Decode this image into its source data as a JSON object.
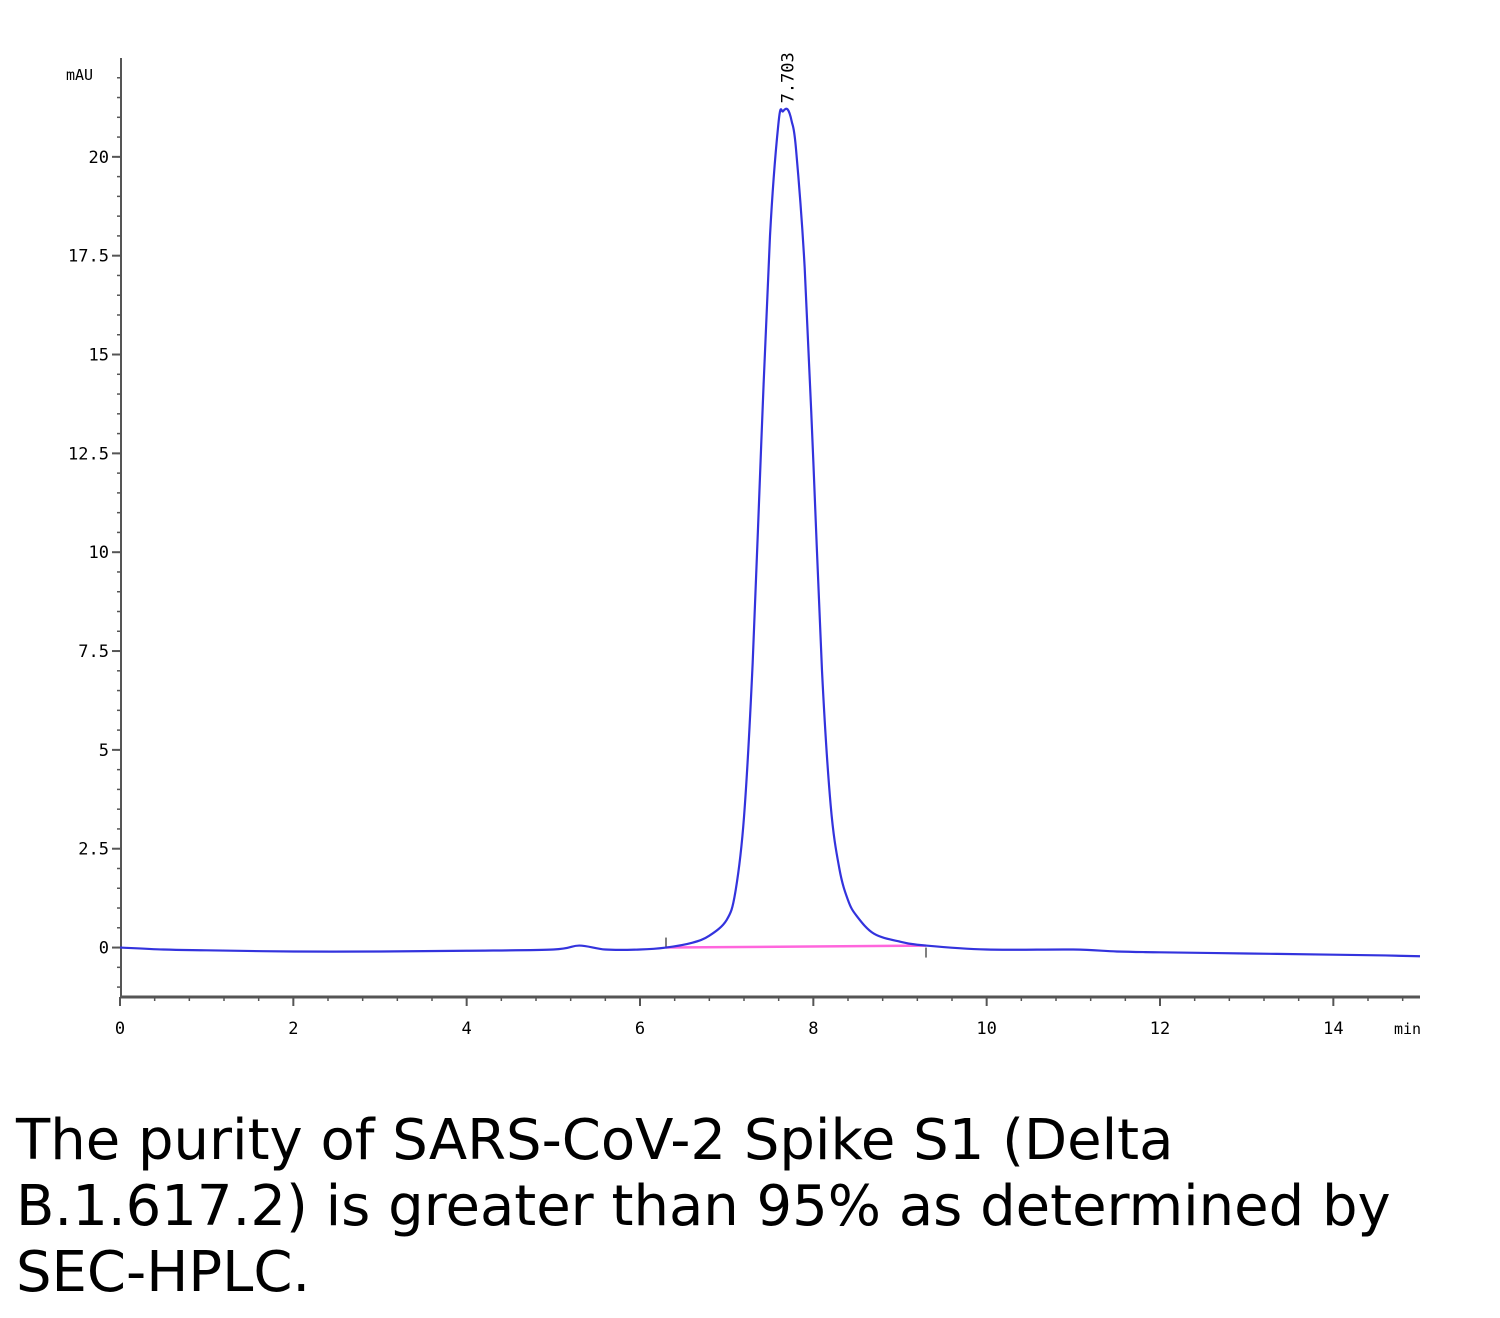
{
  "chart_data": {
    "type": "line",
    "y_unit": "mAU",
    "x_unit": "min",
    "xlim": [
      0,
      15
    ],
    "ylim": [
      -1.2,
      22.5
    ],
    "x_ticks": [
      0,
      2,
      4,
      6,
      8,
      10,
      12,
      14
    ],
    "y_ticks": [
      0,
      2.5,
      5,
      7.5,
      10,
      12.5,
      15,
      17.5,
      20
    ],
    "x_tick_labels": [
      "0",
      "2",
      "4",
      "6",
      "8",
      "10",
      "12",
      "14"
    ],
    "y_tick_labels": [
      "0",
      "2.5",
      "5",
      "7.5",
      "10",
      "12.5",
      "15",
      "17.5",
      "20"
    ],
    "peak": {
      "label": "7.703",
      "x": 7.703,
      "y": 21.2
    },
    "series": [
      {
        "color": "#3333dd",
        "x": [
          0,
          0.5,
          1,
          2,
          3,
          4,
          5,
          5.3,
          5.6,
          6,
          6.3,
          6.6,
          6.8,
          7.0,
          7.1,
          7.2,
          7.3,
          7.4,
          7.5,
          7.6,
          7.65,
          7.703,
          7.75,
          7.8,
          7.9,
          8.0,
          8.1,
          8.2,
          8.3,
          8.4,
          8.5,
          8.7,
          9.0,
          9.3,
          10,
          11,
          11.5,
          12,
          13,
          14,
          14.6,
          15
        ],
        "y": [
          0.0,
          -0.05,
          -0.07,
          -0.1,
          -0.1,
          -0.08,
          -0.05,
          0.05,
          -0.05,
          -0.05,
          0.0,
          0.12,
          0.3,
          0.7,
          1.4,
          3.3,
          7.2,
          12.8,
          18.0,
          20.9,
          21.15,
          21.2,
          20.9,
          20.2,
          17.2,
          12.3,
          7.0,
          3.6,
          2.0,
          1.2,
          0.8,
          0.35,
          0.15,
          0.05,
          -0.05,
          -0.05,
          -0.1,
          -0.12,
          -0.15,
          -0.18,
          -0.2,
          -0.22
        ]
      }
    ],
    "baseline": {
      "color": "#ff66dd",
      "x": [
        6.3,
        9.3
      ],
      "y": [
        0.0,
        0.05
      ]
    }
  },
  "caption": "The purity of SARS-CoV-2 Spike S1 (Delta B.1.617.2) is greater than 95% as determined by SEC-HPLC."
}
